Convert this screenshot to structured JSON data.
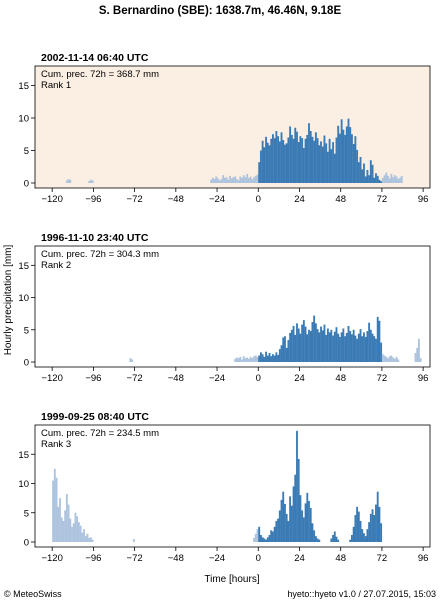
{
  "figure": {
    "title": "S. Bernardino (SBE): 1638.7m, 46.46N, 9.18E",
    "ylabel": "Hourly precipitation [mm]",
    "xlabel": "Time [hours]",
    "footer_left": "© MeteoSwiss",
    "footer_right": "hyeto::hyeto v1.0 / 27.07.2015, 15:03"
  },
  "colors": {
    "main_bar": "#3b7bb5",
    "context_bar": "#aec4de",
    "highlight_bg": "#fbeee2",
    "plain_bg": "#ffffff"
  },
  "chart_data": [
    {
      "type": "bar",
      "title": "2002-11-14 06:40 UTC",
      "annotation": "Cum. prec. 72h = 368.7 mm",
      "rank": "Rank 1",
      "highlighted": true,
      "xlim": [
        -130,
        100
      ],
      "ylim": [
        0,
        18
      ],
      "xticks": [
        -120,
        -96,
        -72,
        -48,
        -24,
        0,
        24,
        48,
        72,
        96
      ],
      "yticks": [
        0,
        5,
        10,
        15
      ],
      "grid": false,
      "series": [
        {
          "role": "context",
          "x_start": -112,
          "values": [
            0.4,
            0.6,
            0.5
          ]
        },
        {
          "role": "context",
          "x_start": -99,
          "values": [
            0.3,
            0.5,
            0.4
          ]
        },
        {
          "role": "context",
          "x_start": -28,
          "values": [
            0.5,
            0.8,
            0.6,
            1.0,
            0.7,
            0.4,
            0.6,
            1.2,
            0.8,
            0.9,
            0.5,
            1.1,
            0.7,
            0.9,
            1.0,
            0.6,
            0.4,
            1.0,
            0.8,
            1.2,
            0.9,
            1.4,
            0.8,
            1.0,
            0.6,
            0.9,
            1.1,
            1.3
          ]
        },
        {
          "role": "main",
          "x_start": 0,
          "values": [
            3.2,
            5.0,
            6.5,
            5.5,
            7.1,
            6.2,
            5.8,
            6.8,
            7.5,
            6.9,
            8.0,
            7.2,
            6.4,
            7.8,
            6.6,
            5.9,
            6.1,
            7.0,
            8.7,
            7.4,
            6.8,
            8.5,
            7.9,
            6.3,
            7.2,
            6.9,
            5.4,
            6.8,
            7.4,
            9.2,
            8.0,
            7.1,
            6.5,
            7.8,
            6.9,
            5.8,
            6.4,
            5.6,
            7.3,
            6.1,
            4.8,
            6.8,
            5.2,
            6.3,
            4.5,
            7.0,
            8.8,
            7.6,
            9.8,
            8.2,
            7.4,
            8.7,
            9.9,
            8.6,
            7.5,
            6.0,
            7.2,
            5.1,
            3.2,
            4.0,
            2.1,
            3.0,
            1.0,
            2.0,
            1.2,
            3.5,
            2.8,
            0.8,
            1.5,
            1.1,
            0.5,
            0.3
          ]
        },
        {
          "role": "context",
          "x_start": 72,
          "values": [
            0.8,
            1.2,
            1.6,
            1.1,
            0.7,
            1.4,
            0.9,
            1.2,
            1.0,
            0.6,
            0.8,
            1.1
          ]
        }
      ]
    },
    {
      "type": "bar",
      "title": "1996-11-10 23:40 UTC",
      "annotation": "Cum. prec. 72h = 304.3 mm",
      "rank": "Rank 2",
      "highlighted": false,
      "xlim": [
        -130,
        100
      ],
      "ylim": [
        0,
        18
      ],
      "xticks": [
        -120,
        -96,
        -72,
        -48,
        -24,
        0,
        24,
        48,
        72,
        96
      ],
      "yticks": [
        0,
        5,
        10,
        15
      ],
      "grid": false,
      "series": [
        {
          "role": "context",
          "x_start": -75,
          "values": [
            0.6,
            0.4
          ]
        },
        {
          "role": "context",
          "x_start": -14,
          "values": [
            0.5,
            0.7,
            0.6,
            0.8,
            0.4,
            0.9,
            0.6,
            0.7,
            0.5,
            0.8,
            0.6,
            0.9,
            1.0,
            0.8
          ]
        },
        {
          "role": "main",
          "x_start": 0,
          "values": [
            1.0,
            1.5,
            1.2,
            0.8,
            1.6,
            1.0,
            1.4,
            0.9,
            1.2,
            1.0,
            1.5,
            1.1,
            2.0,
            2.6,
            3.8,
            4.0,
            2.2,
            3.4,
            4.5,
            5.0,
            5.6,
            4.2,
            6.0,
            5.2,
            4.4,
            5.8,
            6.5,
            5.5,
            4.3,
            5.0,
            4.8,
            6.2,
            7.2,
            6.0,
            5.1,
            4.6,
            5.5,
            4.9,
            5.8,
            4.2,
            5.2,
            4.6,
            5.0,
            4.1,
            4.7,
            5.4,
            4.4,
            3.9,
            4.6,
            5.2,
            4.0,
            4.5,
            5.6,
            4.8,
            4.3,
            5.0,
            4.1,
            3.6,
            4.4,
            5.1,
            4.0,
            4.6,
            3.9,
            4.8,
            6.1,
            5.0,
            4.4,
            4.0,
            3.6,
            7.0,
            6.4,
            3.0
          ]
        },
        {
          "role": "context",
          "x_start": 72,
          "values": [
            1.2,
            1.0,
            0.8,
            0.6,
            0.9,
            1.0,
            0.7,
            0.5,
            0.8,
            0.4
          ]
        },
        {
          "role": "context",
          "x_start": 91,
          "values": [
            1.4,
            2.2,
            3.6,
            0.6
          ]
        }
      ]
    },
    {
      "type": "bar",
      "title": "1999-09-25 08:40 UTC",
      "annotation": "Cum. prec. 72h = 234.5 mm",
      "rank": "Rank 3",
      "highlighted": false,
      "xlim": [
        -130,
        100
      ],
      "ylim": [
        0,
        20
      ],
      "xticks": [
        -120,
        -96,
        -72,
        -48,
        -24,
        0,
        24,
        48,
        72,
        96
      ],
      "yticks": [
        0,
        5,
        10,
        15
      ],
      "grid": false,
      "series": [
        {
          "role": "context",
          "x_start": -120,
          "values": [
            10.5,
            12.5,
            11.0,
            6.0,
            7.5,
            4.2,
            3.6,
            5.4,
            8.2,
            6.4,
            4.0,
            2.6,
            3.2,
            5.0,
            4.4,
            3.4,
            2.8,
            1.6,
            2.2,
            1.0,
            1.4,
            0.7,
            0.8,
            0.4
          ]
        },
        {
          "role": "context",
          "x_start": -73,
          "values": [
            0.5
          ]
        },
        {
          "role": "context",
          "x_start": -3,
          "values": [
            0.7,
            1.4,
            2.2
          ]
        },
        {
          "role": "main",
          "x_start": 0,
          "values": [
            2.6,
            1.2,
            0.8,
            0.6,
            0.4,
            0.8,
            1.2,
            2.0,
            1.8,
            2.6,
            3.6,
            4.0,
            5.4,
            7.2,
            8.6,
            6.5,
            4.8,
            3.6,
            7.8,
            6.2,
            9.5,
            11.5,
            19.0,
            14.2,
            8.0,
            5.4,
            4.2,
            6.6,
            8.4,
            7.0,
            5.8,
            3.2,
            2.0,
            1.0,
            0.6,
            0.4,
            0.0,
            0.0,
            0.0,
            0.0,
            0.0,
            0.0,
            0.6,
            1.2,
            1.8,
            0.9,
            0.4,
            0.0,
            0.0,
            0.0,
            0.0,
            0.0,
            0.0,
            0.4,
            1.2,
            2.6,
            4.6,
            6.0,
            5.2,
            3.6,
            2.2,
            1.5,
            1.0,
            2.2,
            3.4,
            4.8,
            5.6,
            4.6,
            6.4,
            8.6,
            6.0,
            3.2
          ]
        }
      ]
    }
  ]
}
